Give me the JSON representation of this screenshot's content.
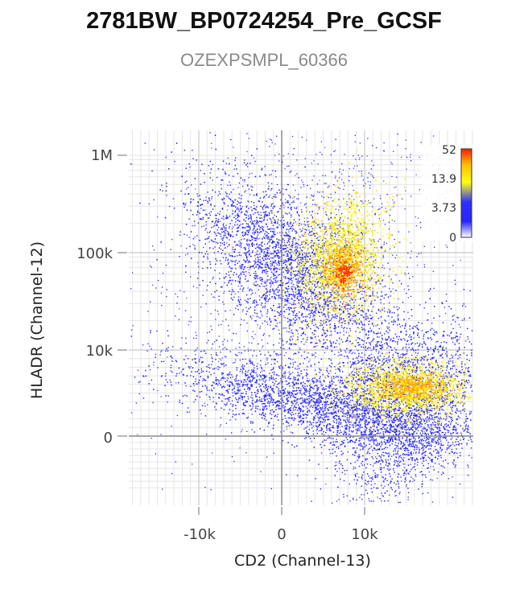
{
  "chart_data": {
    "type": "scatter",
    "title": "2781BW_BP0724254_Pre_GCSF",
    "subtitle": "OZEXPSMPL_60366",
    "xlabel": "CD2 (Channel-13)",
    "ylabel": "HLADR (Channel-12)",
    "x_scale": "biexponential",
    "y_scale": "biexponential",
    "x_ticks": [
      "-10k",
      "0",
      "10k"
    ],
    "y_ticks": [
      "1M",
      "100k",
      "10k",
      "0"
    ],
    "grid": true,
    "density_colormap": [
      "#ffffff",
      "#2020ff",
      "#ffff00",
      "#ff2000"
    ],
    "colorbar": {
      "labels": [
        "52",
        "13.9",
        "3.73",
        "0"
      ],
      "placement": "top-right"
    },
    "populations": [
      {
        "x_center": 7000,
        "y_center": 80000,
        "density": "high"
      },
      {
        "x_center": 16000,
        "y_center": 4000,
        "density": "high"
      },
      {
        "x_center": -1000,
        "y_center": 150000,
        "density": "medium"
      },
      {
        "x_center": 5000,
        "y_center": 2000,
        "density": "low"
      },
      {
        "x_center": 17000,
        "y_center": 1500,
        "density": "low"
      }
    ]
  }
}
